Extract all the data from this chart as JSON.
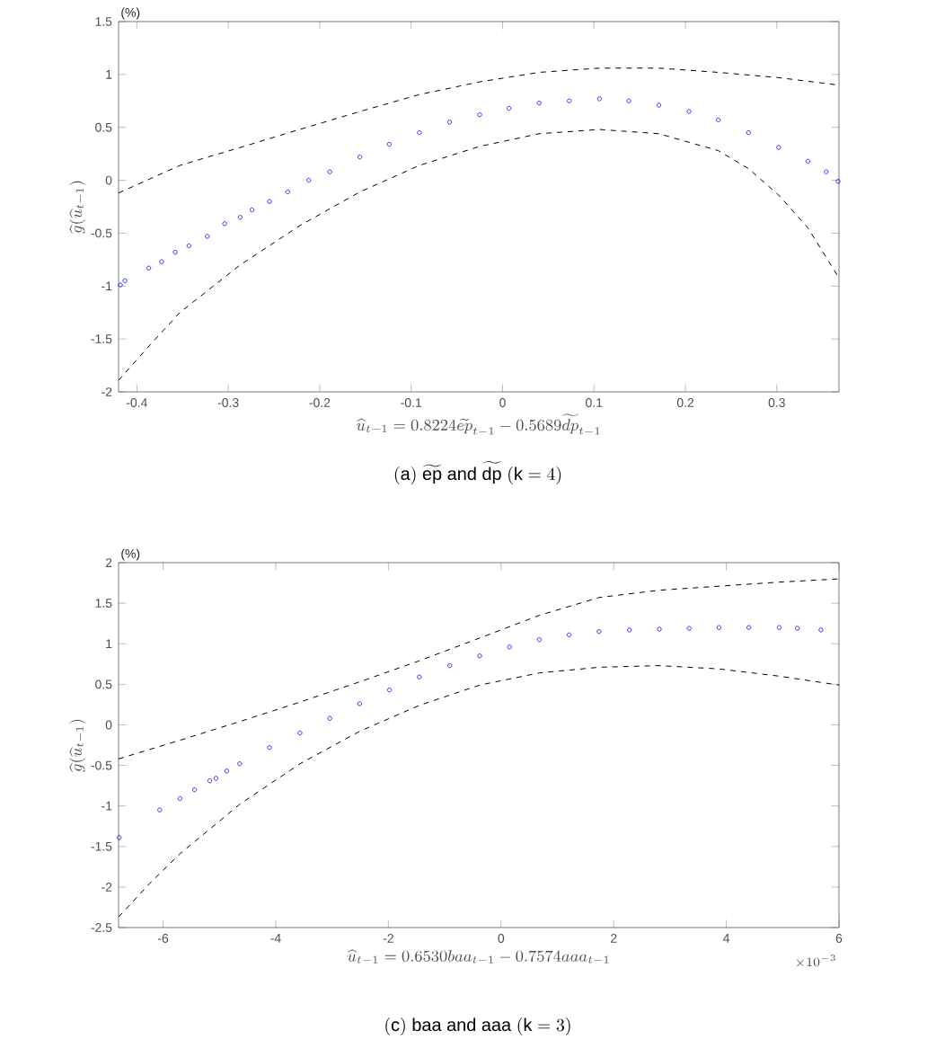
{
  "chart_data": [
    {
      "type": "scatter",
      "xlabel": "\\widehat{u}_{t-1} = 0.8224\\widetilde{ep}_{t-1} - 0.5689\\widetilde{dp}_{t-1}",
      "ylabel": "\\widehat{g}(\\widehat{u}_{t-1})",
      "annotations": [
        "(%)",
        "(\\mathrm{a})\\ \\widetilde{\\mathrm{ep}}\\ \\mathrm{and}\\ \\widetilde{\\mathrm{dp}}\\ (\\mathrm{k} = 4)"
      ],
      "xlim": [
        -0.42,
        0.368
      ],
      "ylim": [
        -2,
        1.5
      ],
      "xticks": [
        -0.4,
        -0.3,
        -0.2,
        -0.1,
        0,
        0.1,
        0.2,
        0.3
      ],
      "yticks": [
        -2,
        -1.5,
        -1,
        -0.5,
        0,
        0.5,
        1,
        1.5
      ],
      "marker": "circle",
      "series": [
        {
          "color": "#0000ff",
          "x": [
            -0.418,
            -0.413,
            -0.387,
            -0.373,
            -0.358,
            -0.343,
            -0.323,
            -0.304,
            -0.287,
            -0.274,
            -0.255,
            -0.235,
            -0.212,
            -0.189,
            -0.156,
            -0.124,
            -0.091,
            -0.058,
            -0.025,
            0.007,
            0.04,
            0.073,
            0.106,
            0.138,
            0.171,
            0.204,
            0.236,
            0.269,
            0.302,
            0.334,
            0.354,
            0.367
          ],
          "values": [
            -0.99,
            -0.95,
            -0.83,
            -0.77,
            -0.68,
            -0.62,
            -0.53,
            -0.41,
            -0.35,
            -0.28,
            -0.2,
            -0.11,
            0.0,
            0.08,
            0.22,
            0.34,
            0.45,
            0.55,
            0.62,
            0.68,
            0.73,
            0.75,
            0.77,
            0.75,
            0.71,
            0.65,
            0.57,
            0.45,
            0.31,
            0.18,
            0.08,
            -0.01
          ]
        },
        {
          "type": "line",
          "marker": "none",
          "line_style": "dashed",
          "color": "#000000",
          "x": [
            -0.42,
            -0.353,
            -0.287,
            -0.222,
            -0.156,
            -0.091,
            -0.025,
            0.04,
            0.106,
            0.171,
            0.236,
            0.302,
            0.367
          ],
          "values": [
            -0.12,
            0.14,
            0.31,
            0.48,
            0.65,
            0.81,
            0.93,
            1.02,
            1.06,
            1.06,
            1.02,
            0.97,
            0.9
          ]
        },
        {
          "type": "line",
          "marker": "none",
          "line_style": "dashed",
          "color": "#000000",
          "x": [
            -0.42,
            -0.386,
            -0.353,
            -0.287,
            -0.222,
            -0.156,
            -0.091,
            -0.025,
            0.04,
            0.106,
            0.171,
            0.236,
            0.269,
            0.302,
            0.334,
            0.367
          ],
          "values": [
            -1.89,
            -1.56,
            -1.25,
            -0.8,
            -0.43,
            -0.11,
            0.14,
            0.32,
            0.44,
            0.48,
            0.44,
            0.28,
            0.11,
            -0.14,
            -0.45,
            -0.91
          ]
        }
      ]
    },
    {
      "type": "scatter",
      "xlabel": "\\widehat{u}_{t-1} = 0.6530baa_{t-1} - 0.7574aaa_{t-1}",
      "ylabel": "\\widehat{g}(\\widehat{u}_{t-1})",
      "annotations": [
        "(%)",
        "(\\mathrm{c})\\ \\mathrm{baa}\\ \\mathrm{and}\\ \\mathrm{aaa}\\ (\\mathrm{k} = 3)",
        "\\times 10^{-3}"
      ],
      "xlim": [
        -6.79,
        6
      ],
      "ylim": [
        -2.5,
        2
      ],
      "xticks": [
        -6,
        -4,
        -2,
        0,
        2,
        4,
        6
      ],
      "yticks": [
        -2.5,
        -2,
        -1.5,
        -1,
        -0.5,
        0,
        0.5,
        1,
        1.5,
        2
      ],
      "marker": "circle",
      "series": [
        {
          "color": "#0000ff",
          "x": [
            -6.78,
            -6.06,
            -5.7,
            -5.44,
            -5.17,
            -5.06,
            -4.87,
            -4.64,
            -4.11,
            -3.57,
            -3.04,
            -2.51,
            -1.98,
            -1.45,
            -0.91,
            -0.38,
            0.15,
            0.68,
            1.21,
            1.74,
            2.28,
            2.81,
            3.34,
            3.87,
            4.4,
            4.94,
            5.26,
            5.68
          ],
          "values": [
            -1.39,
            -1.05,
            -0.91,
            -0.8,
            -0.69,
            -0.66,
            -0.57,
            -0.48,
            -0.28,
            -0.1,
            0.08,
            0.26,
            0.43,
            0.59,
            0.73,
            0.85,
            0.96,
            1.05,
            1.11,
            1.15,
            1.17,
            1.18,
            1.19,
            1.2,
            1.2,
            1.2,
            1.19,
            1.17
          ]
        },
        {
          "type": "line",
          "marker": "none",
          "line_style": "dashed",
          "color": "#000000",
          "x": [
            -6.79,
            -5.7,
            -4.64,
            -3.57,
            -2.51,
            -1.45,
            -0.38,
            0.68,
            1.74,
            2.81,
            3.87,
            4.94,
            6.0
          ],
          "values": [
            -0.42,
            -0.19,
            0.04,
            0.28,
            0.53,
            0.79,
            1.07,
            1.35,
            1.57,
            1.66,
            1.71,
            1.76,
            1.8
          ]
        },
        {
          "type": "line",
          "marker": "none",
          "line_style": "dashed",
          "color": "#000000",
          "x": [
            -6.79,
            -6.23,
            -5.7,
            -4.64,
            -3.57,
            -2.51,
            -1.45,
            -0.38,
            0.68,
            1.74,
            2.81,
            3.87,
            4.94,
            6.0
          ],
          "values": [
            -2.37,
            -1.95,
            -1.59,
            -0.98,
            -0.48,
            -0.08,
            0.24,
            0.49,
            0.64,
            0.71,
            0.73,
            0.69,
            0.6,
            0.49
          ]
        }
      ]
    }
  ]
}
